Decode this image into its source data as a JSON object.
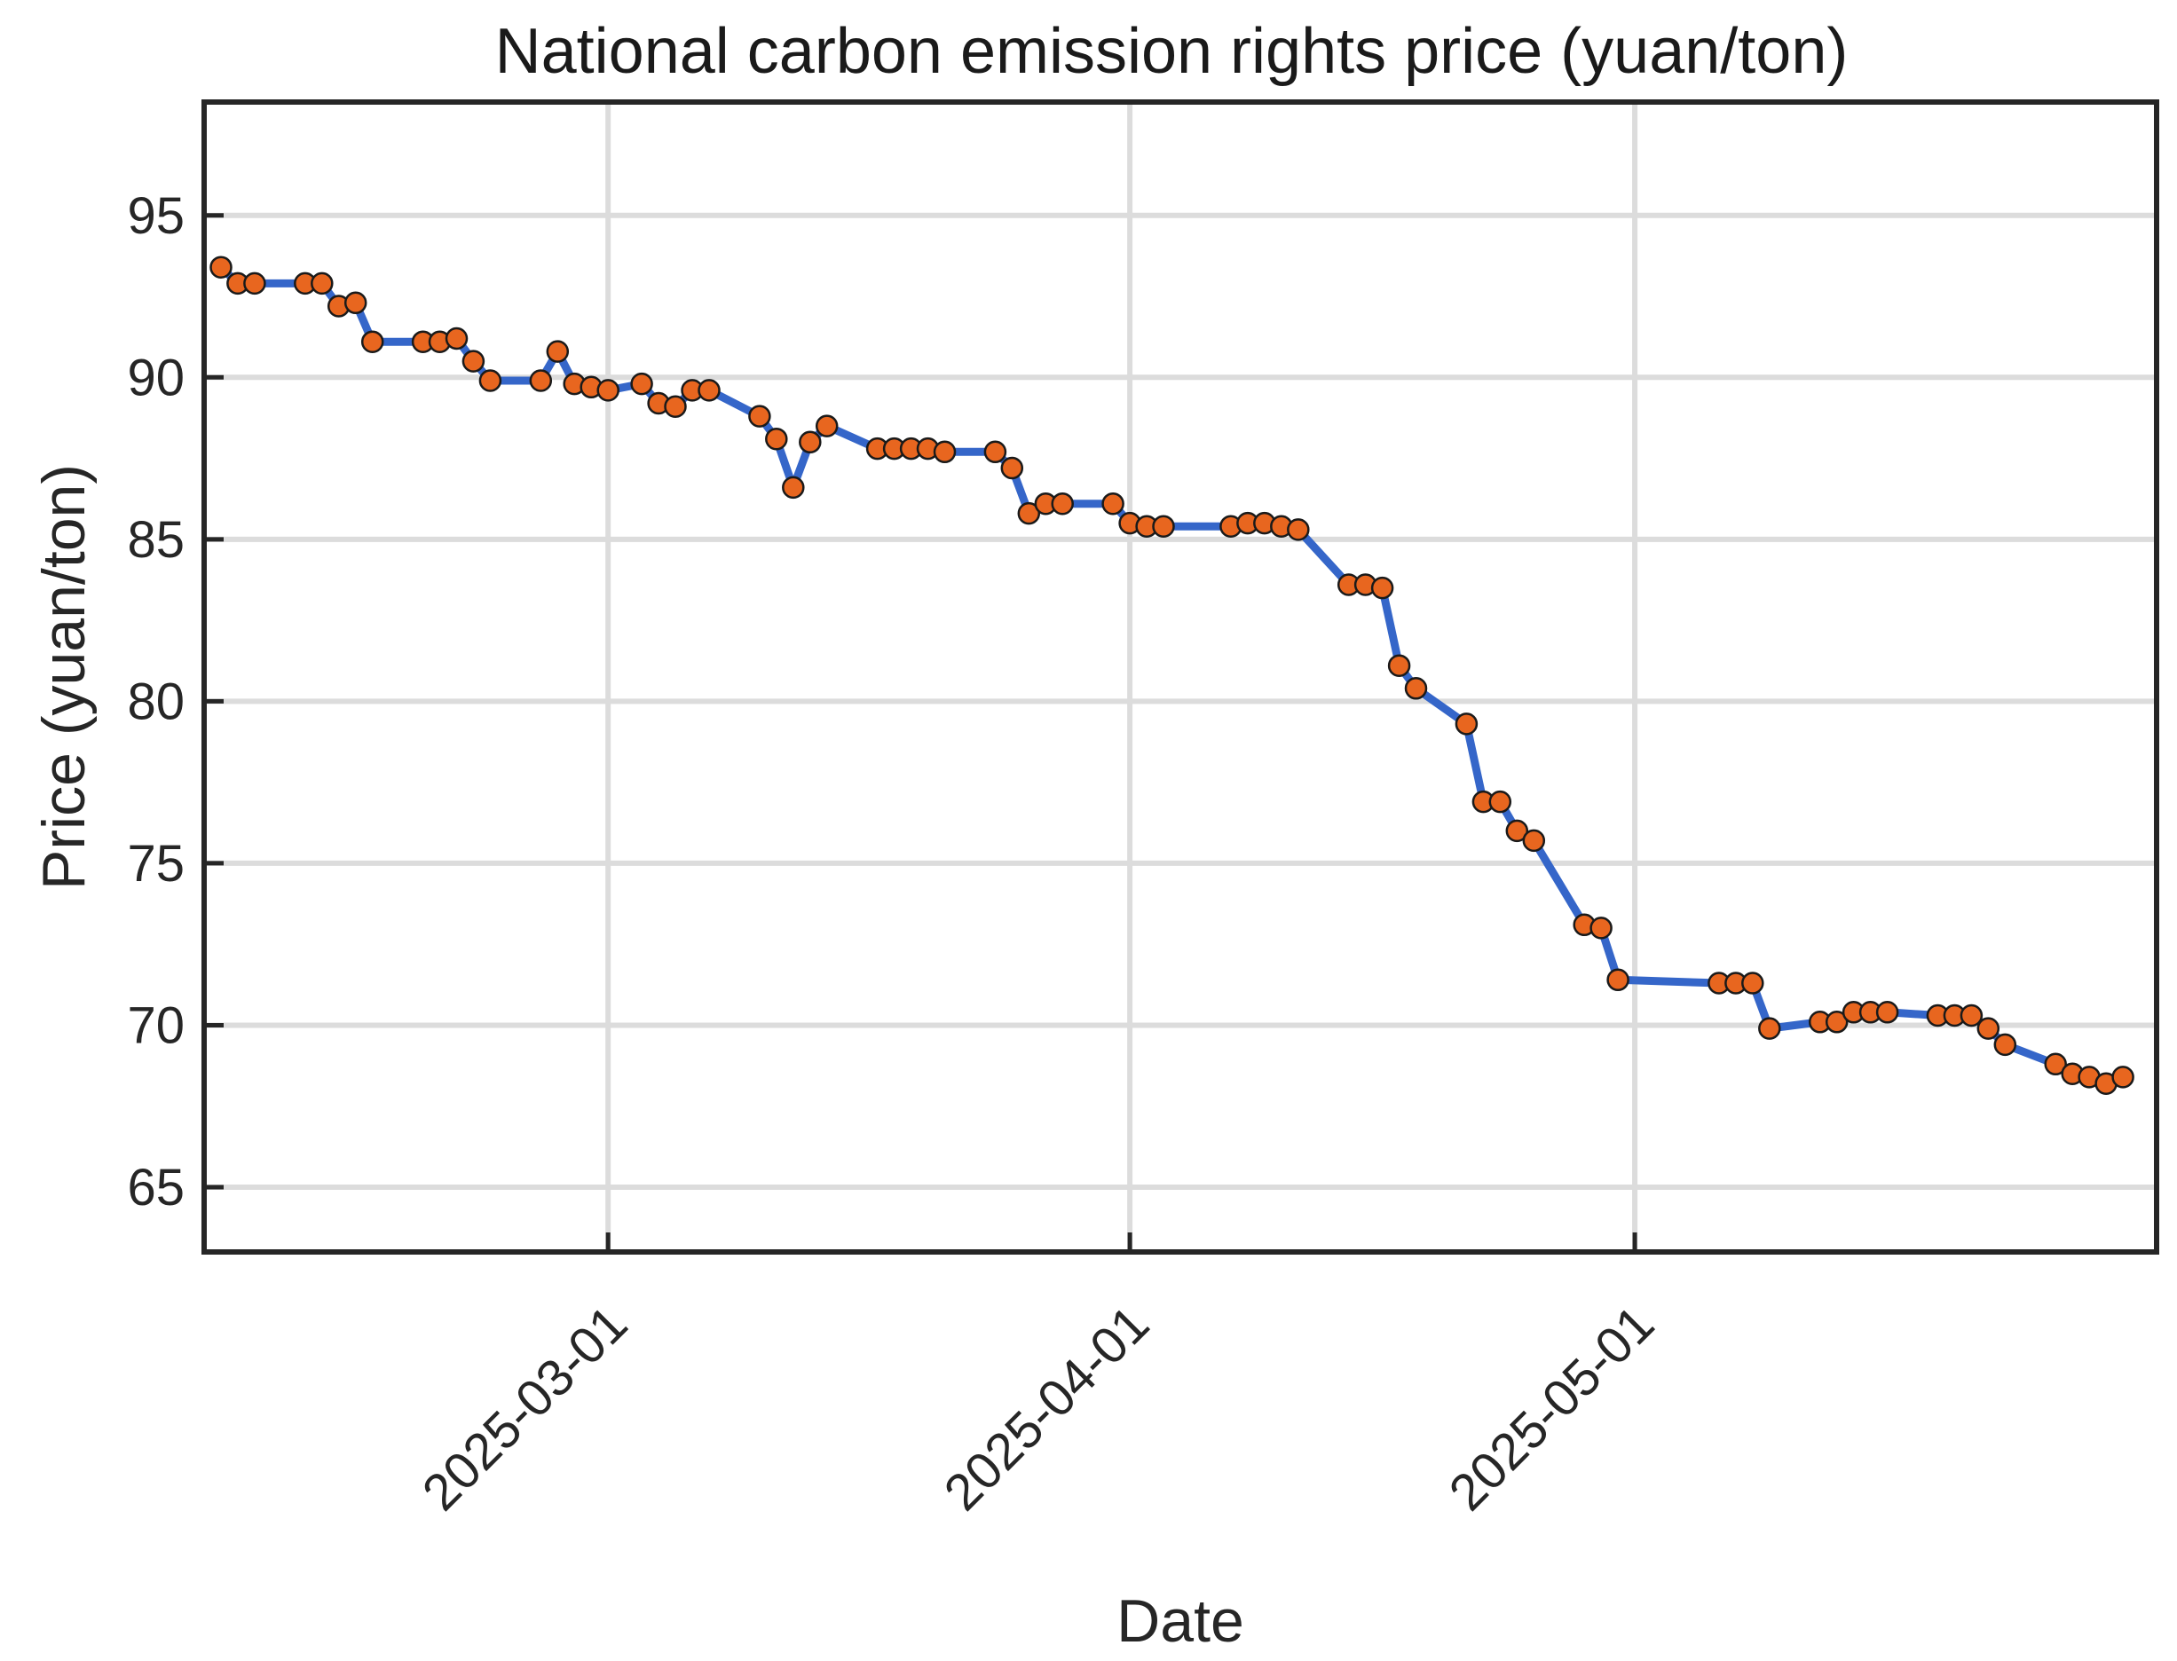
{
  "chart_data": {
    "type": "line",
    "title": "National carbon emission rights price (yuan/ton)",
    "xlabel": "Date",
    "ylabel": "Price (yuan/ton)",
    "xlim": [
      "2025-02-05",
      "2025-06-01"
    ],
    "ylim": [
      63,
      98.5
    ],
    "grid": true,
    "x_ticks": [
      "2025-03-01",
      "2025-04-01",
      "2025-05-01"
    ],
    "y_ticks": [
      65,
      70,
      75,
      80,
      85,
      90,
      95
    ],
    "colors": {
      "line": "#3566c9",
      "marker_fill": "#e8661f",
      "marker_edge": "#1a1a1a",
      "grid": "#dcdcdc"
    },
    "series": [
      {
        "name": "Price",
        "x": [
          "2025-02-06",
          "2025-02-07",
          "2025-02-08",
          "2025-02-11",
          "2025-02-12",
          "2025-02-13",
          "2025-02-14",
          "2025-02-15",
          "2025-02-18",
          "2025-02-19",
          "2025-02-20",
          "2025-02-21",
          "2025-02-22",
          "2025-02-25",
          "2025-02-26",
          "2025-02-27",
          "2025-02-28",
          "2025-03-01",
          "2025-03-03",
          "2025-03-04",
          "2025-03-05",
          "2025-03-06",
          "2025-03-07",
          "2025-03-10",
          "2025-03-11",
          "2025-03-12",
          "2025-03-13",
          "2025-03-14",
          "2025-03-17",
          "2025-03-18",
          "2025-03-19",
          "2025-03-20",
          "2025-03-21",
          "2025-03-24",
          "2025-03-25",
          "2025-03-26",
          "2025-03-27",
          "2025-03-28",
          "2025-03-31",
          "2025-04-01",
          "2025-04-02",
          "2025-04-03",
          "2025-04-07",
          "2025-04-08",
          "2025-04-09",
          "2025-04-10",
          "2025-04-11",
          "2025-04-14",
          "2025-04-15",
          "2025-04-16",
          "2025-04-17",
          "2025-04-18",
          "2025-04-21",
          "2025-04-22",
          "2025-04-23",
          "2025-04-24",
          "2025-04-25",
          "2025-04-28",
          "2025-04-29",
          "2025-04-30",
          "2025-05-06",
          "2025-05-07",
          "2025-05-08",
          "2025-05-09",
          "2025-05-12",
          "2025-05-13",
          "2025-05-14",
          "2025-05-15",
          "2025-05-16",
          "2025-05-19",
          "2025-05-20",
          "2025-05-21",
          "2025-05-22",
          "2025-05-23",
          "2025-05-26",
          "2025-05-27",
          "2025-05-28",
          "2025-05-29",
          "2025-05-30"
        ],
        "values": [
          93.4,
          92.9,
          92.9,
          92.9,
          92.9,
          92.2,
          92.3,
          91.1,
          91.1,
          91.1,
          91.2,
          90.5,
          89.9,
          89.9,
          90.8,
          89.8,
          89.7,
          89.6,
          89.8,
          89.2,
          89.1,
          89.6,
          89.6,
          88.8,
          88.1,
          86.6,
          88.0,
          88.5,
          87.8,
          87.8,
          87.8,
          87.8,
          87.7,
          87.7,
          87.2,
          85.8,
          86.1,
          86.1,
          86.1,
          85.5,
          85.4,
          85.4,
          85.4,
          85.5,
          85.5,
          85.4,
          85.3,
          83.6,
          83.6,
          83.5,
          81.1,
          80.4,
          79.3,
          76.9,
          76.9,
          76.0,
          75.7,
          73.1,
          73.0,
          71.4,
          71.3,
          71.3,
          71.3,
          69.9,
          70.1,
          70.1,
          70.4,
          70.4,
          70.4,
          70.3,
          70.3,
          70.3,
          69.9,
          69.4,
          68.8,
          68.5,
          68.4,
          68.2,
          68.4
        ]
      }
    ]
  }
}
